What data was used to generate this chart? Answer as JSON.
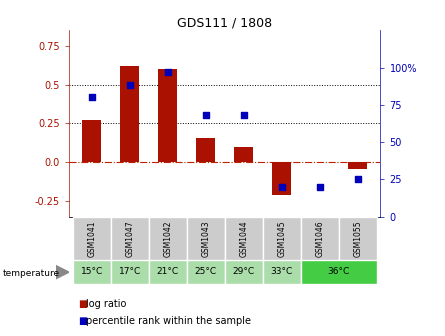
{
  "title": "GDS111 / 1808",
  "samples": [
    "GSM1041",
    "GSM1047",
    "GSM1042",
    "GSM1043",
    "GSM1044",
    "GSM1045",
    "GSM1046",
    "GSM1055"
  ],
  "temperatures": [
    "15°C",
    "17°C",
    "21°C",
    "25°C",
    "29°C",
    "33°C",
    "36°C",
    "36°C"
  ],
  "log_ratio": [
    0.27,
    0.62,
    0.6,
    0.155,
    0.1,
    -0.21,
    0.0,
    -0.04
  ],
  "percentile": [
    80,
    88,
    97,
    68,
    68,
    20,
    20,
    25
  ],
  "ylim_left": [
    -0.35,
    0.85
  ],
  "ylim_right": [
    0,
    125
  ],
  "left_ticks": [
    -0.25,
    0.0,
    0.25,
    0.5,
    0.75
  ],
  "right_ticks": [
    0,
    25,
    50,
    75,
    100
  ],
  "right_tick_labels": [
    "0",
    "25",
    "50",
    "75",
    "100%"
  ],
  "bar_color": "#aa1100",
  "dot_color": "#0000bb",
  "hline_0_color": "#bb2200",
  "hline_025_color": "#000000",
  "hline_05_color": "#000000",
  "sample_bg": "#cccccc",
  "temp_bg_light": "#aaddaa",
  "temp_bg_dark": "#44cc44",
  "bar_width": 0.5,
  "xlim": [
    -0.6,
    7.6
  ]
}
